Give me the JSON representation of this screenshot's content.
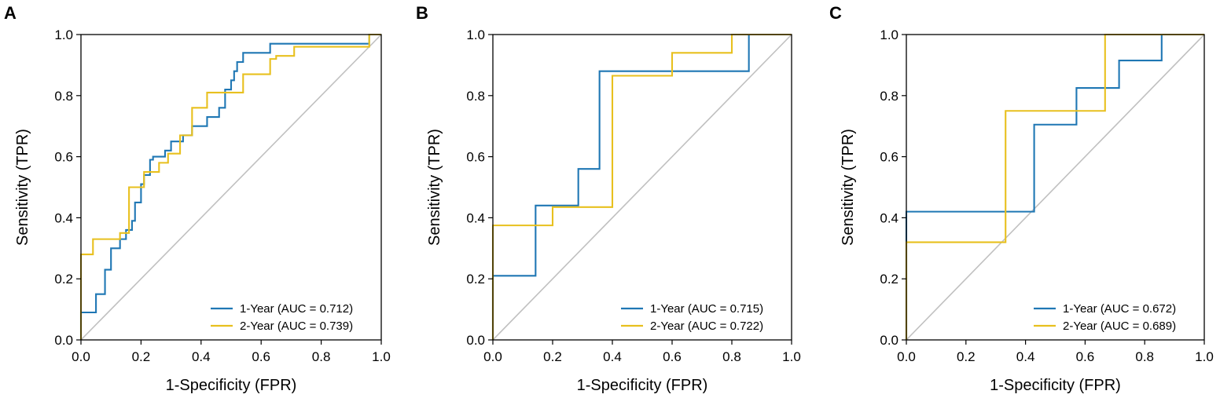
{
  "chart_data": [
    {
      "type": "line",
      "panel_label": "A",
      "xlabel": "1-Specificity (FPR)",
      "ylabel": "Sensitivity (TPR)",
      "xlim": [
        0,
        1
      ],
      "ylim": [
        0,
        1
      ],
      "xticks": [
        "0.0",
        "0.2",
        "0.4",
        "0.6",
        "0.8",
        "1.0"
      ],
      "yticks": [
        "0.0",
        "0.2",
        "0.4",
        "0.6",
        "0.8",
        "1.0"
      ],
      "legend_position": "bottom-right",
      "diagonal": true,
      "series": [
        {
          "name": "1-Year (AUC = 0.712)",
          "color": "#1f77b4",
          "x": [
            0,
            0,
            0.05,
            0.05,
            0.08,
            0.08,
            0.1,
            0.1,
            0.13,
            0.13,
            0.15,
            0.15,
            0.17,
            0.17,
            0.18,
            0.18,
            0.2,
            0.2,
            0.21,
            0.21,
            0.23,
            0.23,
            0.24,
            0.24,
            0.28,
            0.28,
            0.3,
            0.3,
            0.34,
            0.34,
            0.37,
            0.37,
            0.42,
            0.42,
            0.46,
            0.46,
            0.48,
            0.48,
            0.5,
            0.5,
            0.51,
            0.51,
            0.52,
            0.52,
            0.54,
            0.54,
            0.63,
            0.63,
            0.79,
            0.79,
            0.96,
            0.96,
            1.0
          ],
          "y": [
            0,
            0.09,
            0.09,
            0.15,
            0.15,
            0.23,
            0.23,
            0.3,
            0.3,
            0.33,
            0.33,
            0.36,
            0.36,
            0.39,
            0.39,
            0.45,
            0.45,
            0.51,
            0.51,
            0.54,
            0.54,
            0.59,
            0.59,
            0.6,
            0.6,
            0.62,
            0.62,
            0.65,
            0.65,
            0.67,
            0.67,
            0.7,
            0.7,
            0.73,
            0.73,
            0.76,
            0.76,
            0.82,
            0.82,
            0.85,
            0.85,
            0.88,
            0.88,
            0.91,
            0.91,
            0.94,
            0.94,
            0.97,
            0.97,
            0.97,
            0.97,
            1.0,
            1.0
          ]
        },
        {
          "name": "2-Year (AUC = 0.739)",
          "color": "#e8c01e",
          "x": [
            0,
            0,
            0.04,
            0.04,
            0.13,
            0.13,
            0.16,
            0.16,
            0.21,
            0.21,
            0.26,
            0.26,
            0.29,
            0.29,
            0.33,
            0.33,
            0.37,
            0.37,
            0.42,
            0.42,
            0.54,
            0.54,
            0.63,
            0.63,
            0.65,
            0.65,
            0.71,
            0.71,
            0.96,
            0.96,
            1.0
          ],
          "y": [
            0,
            0.28,
            0.28,
            0.33,
            0.33,
            0.35,
            0.35,
            0.5,
            0.5,
            0.55,
            0.55,
            0.58,
            0.58,
            0.61,
            0.61,
            0.67,
            0.67,
            0.76,
            0.76,
            0.81,
            0.81,
            0.87,
            0.87,
            0.92,
            0.92,
            0.93,
            0.93,
            0.96,
            0.96,
            1.0,
            1.0
          ]
        }
      ]
    },
    {
      "type": "line",
      "panel_label": "B",
      "xlabel": "1-Specificity (FPR)",
      "ylabel": "Sensitivity (TPR)",
      "xlim": [
        0,
        1
      ],
      "ylim": [
        0,
        1
      ],
      "xticks": [
        "0.0",
        "0.2",
        "0.4",
        "0.6",
        "0.8",
        "1.0"
      ],
      "yticks": [
        "0.0",
        "0.2",
        "0.4",
        "0.6",
        "0.8",
        "1.0"
      ],
      "legend_position": "bottom-right",
      "diagonal": true,
      "series": [
        {
          "name": "1-Year (AUC = 0.715)",
          "color": "#1f77b4",
          "x": [
            0,
            0,
            0.143,
            0.143,
            0.286,
            0.286,
            0.357,
            0.357,
            0.857,
            0.857,
            1.0
          ],
          "y": [
            0,
            0.21,
            0.21,
            0.44,
            0.44,
            0.56,
            0.56,
            0.88,
            0.88,
            1.0,
            1.0
          ]
        },
        {
          "name": "2-Year (AUC = 0.722)",
          "color": "#e8c01e",
          "x": [
            0,
            0,
            0.2,
            0.2,
            0.4,
            0.4,
            0.6,
            0.6,
            0.8,
            0.8,
            1.0
          ],
          "y": [
            0,
            0.375,
            0.375,
            0.435,
            0.435,
            0.865,
            0.865,
            0.94,
            0.94,
            1.0,
            1.0
          ]
        }
      ]
    },
    {
      "type": "line",
      "panel_label": "C",
      "xlabel": "1-Specificity (FPR)",
      "ylabel": "Sensitivity (TPR)",
      "xlim": [
        0,
        1
      ],
      "ylim": [
        0,
        1
      ],
      "xticks": [
        "0.0",
        "0.2",
        "0.4",
        "0.6",
        "0.8",
        "1.0"
      ],
      "yticks": [
        "0.0",
        "0.2",
        "0.4",
        "0.6",
        "0.8",
        "1.0"
      ],
      "legend_position": "bottom-right",
      "diagonal": true,
      "series": [
        {
          "name": "1-Year (AUC = 0.672)",
          "color": "#1f77b4",
          "x": [
            0,
            0,
            0.429,
            0.429,
            0.571,
            0.571,
            0.714,
            0.714,
            0.857,
            0.857,
            1.0
          ],
          "y": [
            0,
            0.42,
            0.42,
            0.705,
            0.705,
            0.825,
            0.825,
            0.915,
            0.915,
            1.0,
            1.0
          ]
        },
        {
          "name": "2-Year (AUC = 0.689)",
          "color": "#e8c01e",
          "x": [
            0,
            0,
            0.333,
            0.333,
            0.667,
            0.667,
            1.0
          ],
          "y": [
            0,
            0.32,
            0.32,
            0.75,
            0.75,
            1.0,
            1.0
          ]
        }
      ]
    }
  ],
  "style": {
    "diagonal_color": "#c0c0c0",
    "axis_color": "#000000"
  }
}
